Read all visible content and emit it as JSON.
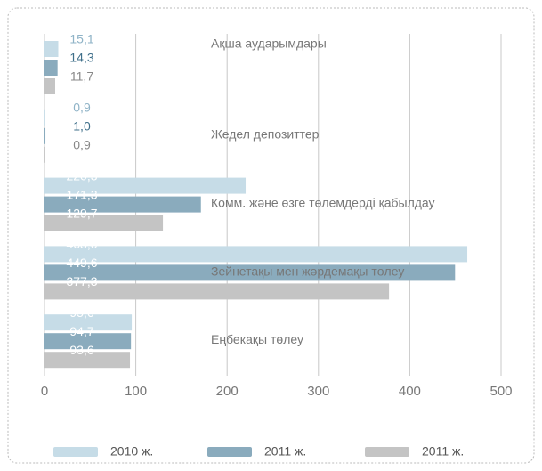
{
  "chart_data": {
    "type": "hbar",
    "categories": [
      "Ақша аударымдары",
      "Жедел депозиттер",
      "Комм. және өзге төлемдерді қабылдау",
      "Зейнетақы мен жәрдемақы төлеу",
      "Еңбекақы төлеу"
    ],
    "series": [
      {
        "name": "2010 ж.",
        "color": "#c6dce7",
        "label_color": "#8fb3c7",
        "values": [
          15.1,
          0.9,
          220.3,
          463.0,
          95.6
        ],
        "value_labels": [
          "15,1",
          "0,9",
          "220,3",
          "463,0",
          "95,6"
        ]
      },
      {
        "name": "2011 ж.",
        "color": "#8aabbd",
        "label_color": "#3f6f8a",
        "values": [
          14.3,
          1.0,
          171.3,
          449.6,
          94.7
        ],
        "value_labels": [
          "14,3",
          "1,0",
          "171,3",
          "449,6",
          "94,7"
        ]
      },
      {
        "name": "2011 ж.",
        "color": "#c4c4c4",
        "label_color": "#888888",
        "values": [
          11.7,
          0.9,
          129.7,
          377.3,
          93.6
        ],
        "value_labels": [
          "11,7",
          "0,9",
          "129,7",
          "377,3",
          "93,6"
        ]
      }
    ],
    "xlim": [
      0,
      500
    ],
    "xticks": [
      0,
      100,
      200,
      300,
      400,
      500
    ],
    "grid": true,
    "legend": "bottom"
  }
}
